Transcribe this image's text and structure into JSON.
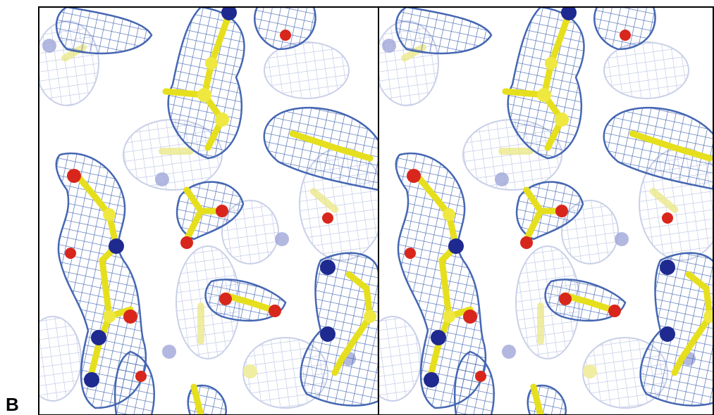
{
  "panel_label": "B"
}
